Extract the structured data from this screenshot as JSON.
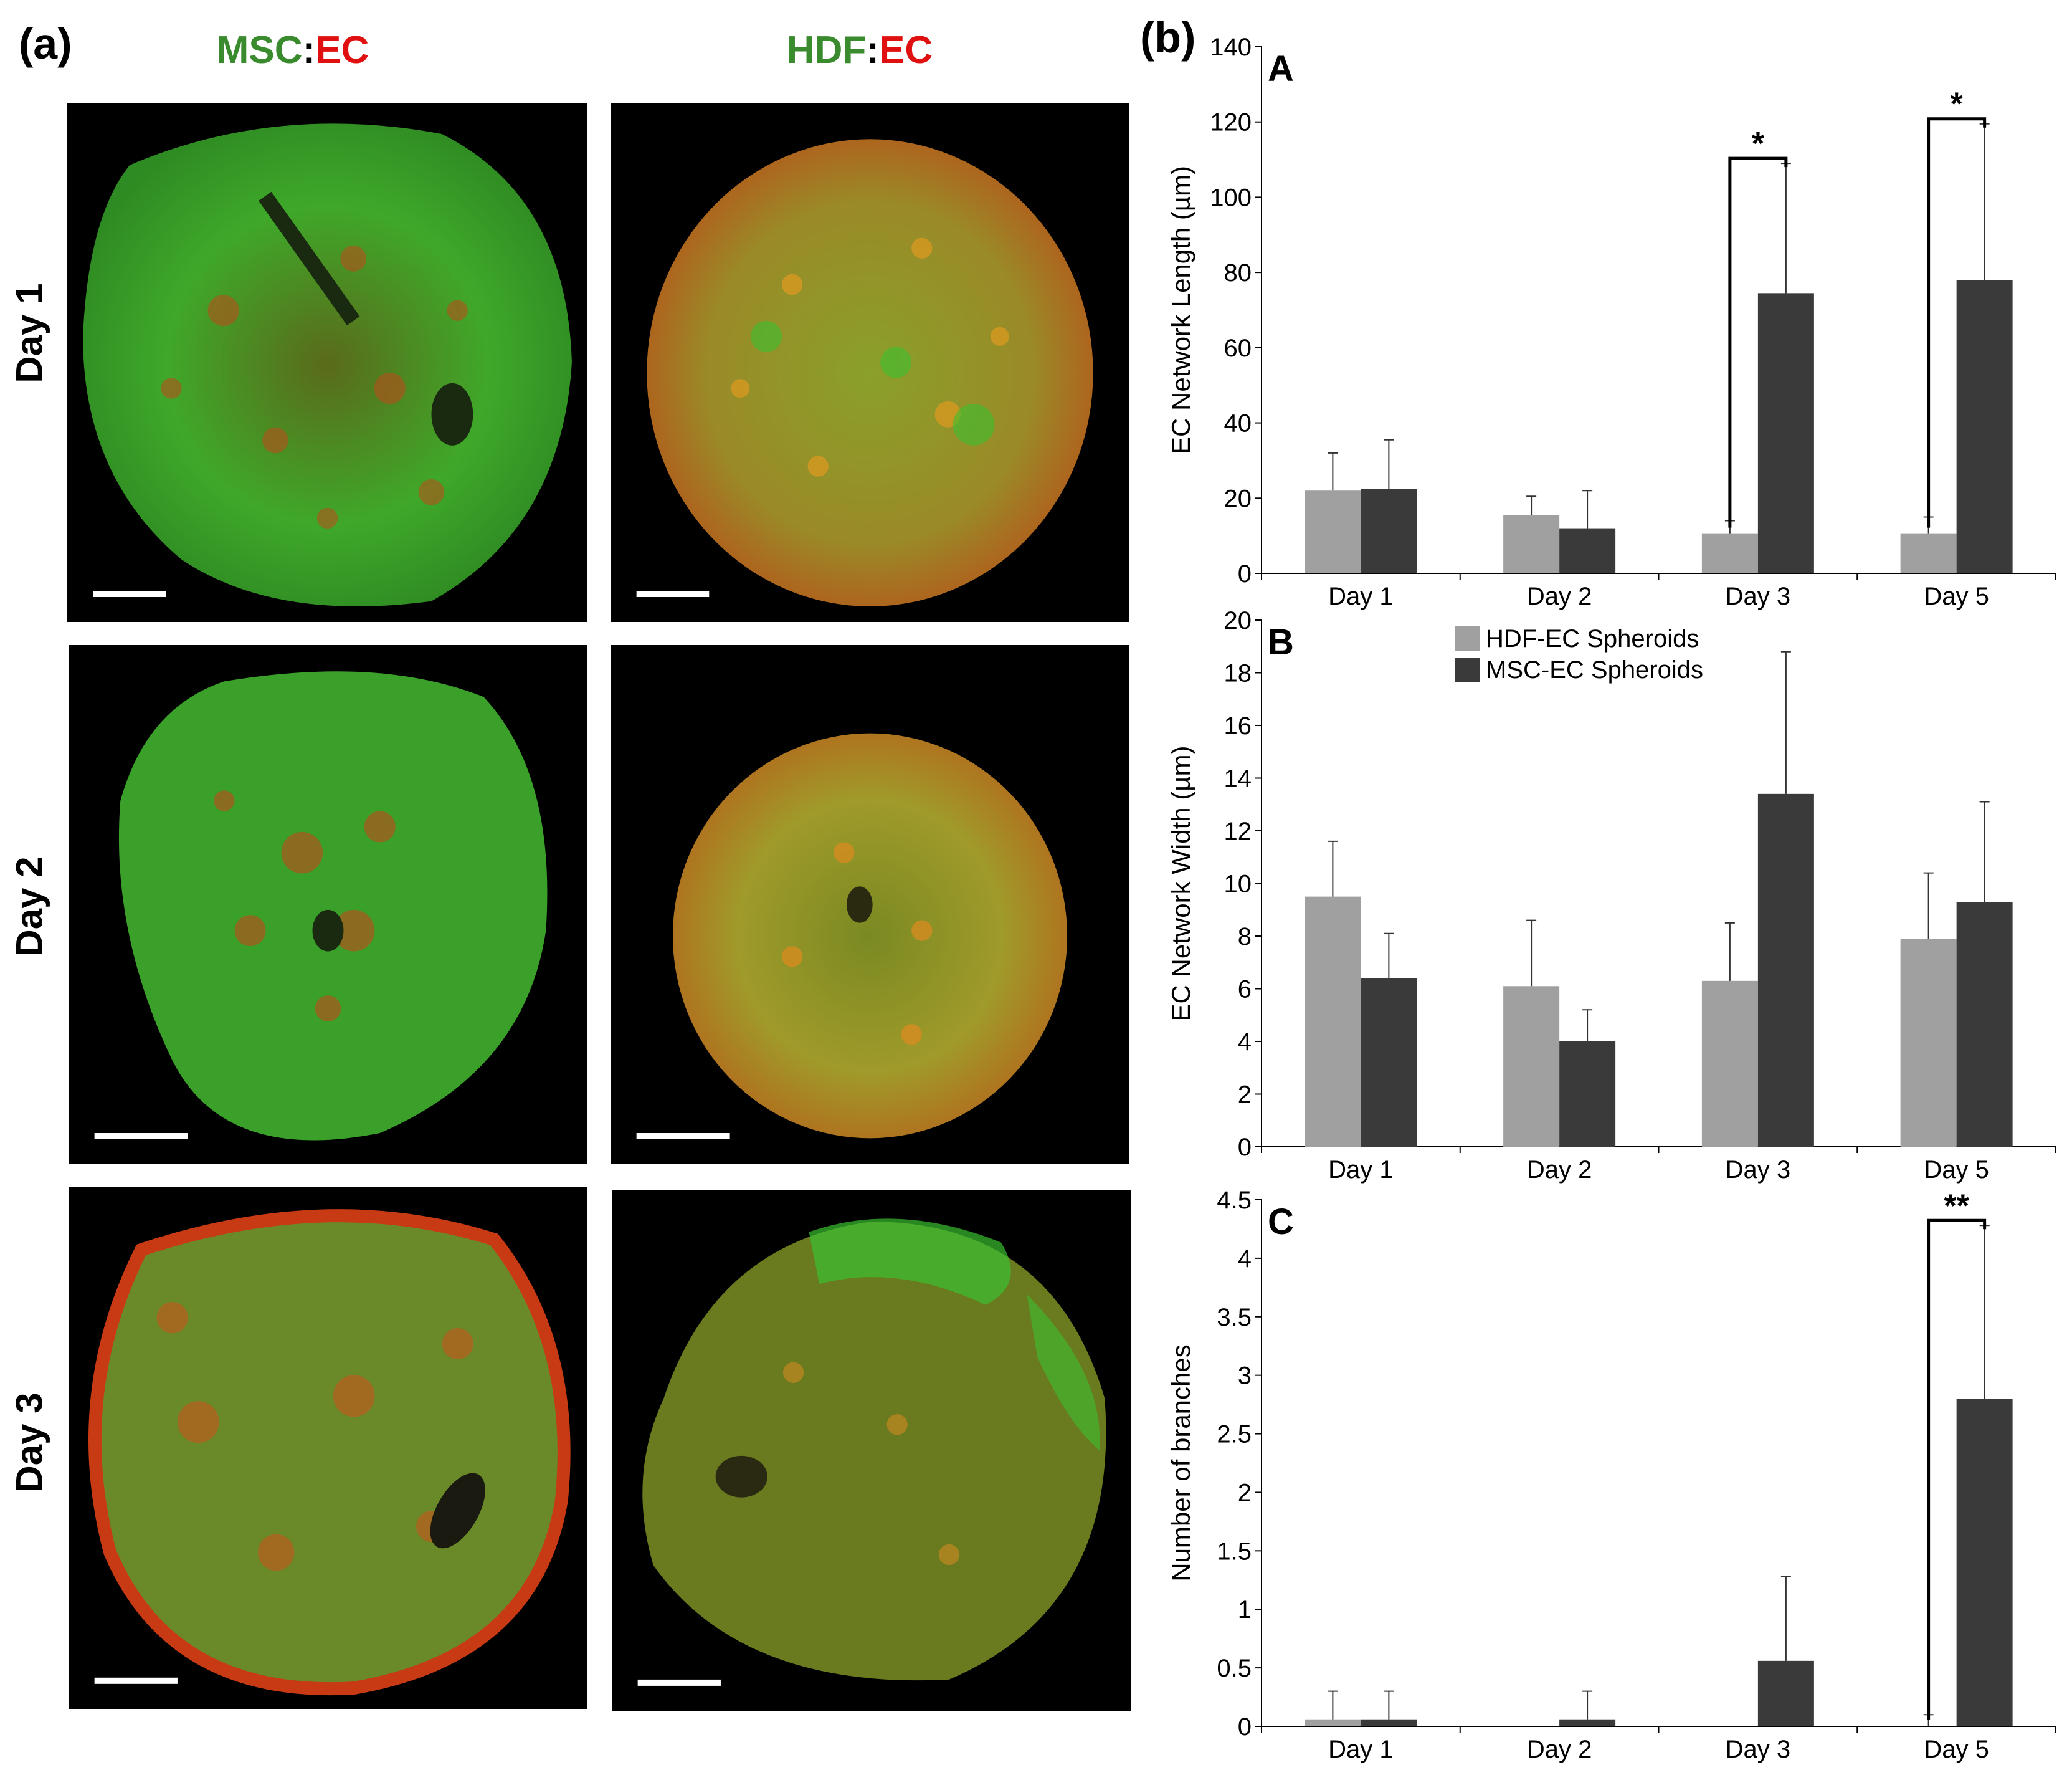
{
  "panel_a_label": "(a)",
  "panel_b_label": "(b)",
  "columns": [
    {
      "part1": "MSC",
      "sep": ":",
      "part2": "EC"
    },
    {
      "part1": "HDF",
      "sep": ":",
      "part2": "EC"
    }
  ],
  "rows": [
    "Day 1",
    "Day 2",
    "Day 3"
  ],
  "colors": {
    "green_label": "#3a8a2e",
    "red_label": "#e01010",
    "hdf_bar": "#a0a0a0",
    "msc_bar": "#3a3a3a"
  },
  "chart_data": [
    {
      "type": "bar",
      "panel": "A",
      "categories": [
        "Day 1",
        "Day 2",
        "Day 3",
        "Day 5"
      ],
      "ylabel": "EC Network Length (µm)",
      "ylim": [
        0,
        140
      ],
      "yticks": [
        0,
        20,
        40,
        60,
        80,
        100,
        120,
        140
      ],
      "series": [
        {
          "name": "HDF-EC Spheroids",
          "values": [
            22,
            15.5,
            10.5,
            10.5
          ],
          "errors": [
            10,
            5,
            3.5,
            4.5
          ]
        },
        {
          "name": "MSC-EC Spheroids",
          "values": [
            22.5,
            12,
            74.5,
            78
          ],
          "errors": [
            13,
            10,
            34.5,
            41.5
          ]
        }
      ],
      "annotations": [
        {
          "category": "Day 3",
          "text": "*"
        },
        {
          "category": "Day 5",
          "text": "*"
        }
      ]
    },
    {
      "type": "bar",
      "panel": "B",
      "categories": [
        "Day 1",
        "Day 2",
        "Day 3",
        "Day 5"
      ],
      "ylabel": "EC Network Width (µm)",
      "ylim": [
        0,
        20
      ],
      "yticks": [
        0,
        2,
        4,
        6,
        8,
        10,
        12,
        14,
        16,
        18,
        20
      ],
      "legend": "top",
      "series": [
        {
          "name": "HDF-EC Spheroids",
          "values": [
            9.5,
            6.1,
            6.3,
            7.9
          ],
          "errors": [
            2.1,
            2.5,
            2.2,
            2.5
          ]
        },
        {
          "name": "MSC-EC Spheroids",
          "values": [
            6.4,
            4.0,
            13.4,
            9.3
          ],
          "errors": [
            1.7,
            1.2,
            5.4,
            3.8
          ]
        }
      ]
    },
    {
      "type": "bar",
      "panel": "C",
      "categories": [
        "Day 1",
        "Day 2",
        "Day 3",
        "Day 5"
      ],
      "ylabel": "Number of branches",
      "ylim": [
        0,
        4.5
      ],
      "yticks": [
        "0",
        "0.5",
        "1",
        "1.5",
        "2",
        "2.5",
        "3",
        "3.5",
        "4",
        "4.5"
      ],
      "series": [
        {
          "name": "HDF-EC Spheroids",
          "values": [
            0.06,
            0,
            0,
            0
          ],
          "errors": [
            0.24,
            0,
            0,
            0.1
          ]
        },
        {
          "name": "MSC-EC Spheroids",
          "values": [
            0.06,
            0.06,
            0.56,
            2.8
          ],
          "errors": [
            0.24,
            0.24,
            0.72,
            1.48
          ]
        }
      ],
      "annotations": [
        {
          "category": "Day 5",
          "text": "**"
        }
      ]
    }
  ]
}
